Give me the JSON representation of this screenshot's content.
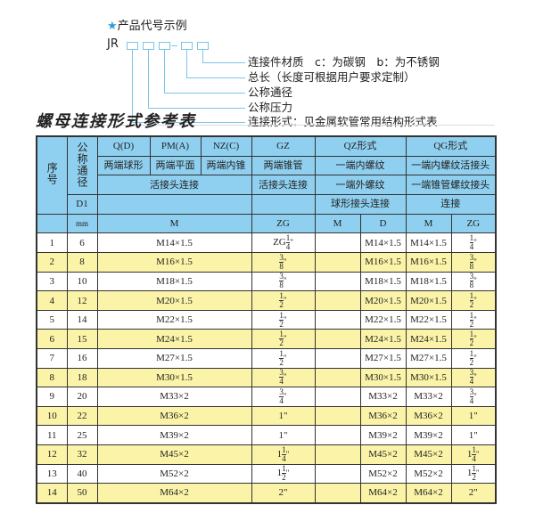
{
  "legend": {
    "title": "产品代号示例",
    "prefix": "JR",
    "items": [
      "连接件材质　c：为碳钢　b：为不锈钢",
      "总长（长度可根据用户要求定制）",
      "公称通径",
      "公称压力",
      "连接形式：见金属软管常用结构形式表"
    ]
  },
  "title": "螺母连接形式参考表",
  "header": {
    "seq": "序号",
    "dn": "公称通径",
    "d1": "D1",
    "mm": "mm",
    "q": "Q(D)",
    "pm": "PM(A)",
    "nz": "NZ(C)",
    "gz": "GZ",
    "qz": "QZ形式",
    "qg": "QG形式",
    "q2": "两端球形",
    "pm2": "两端平面",
    "nz2": "两端内锥",
    "gz2": "两端锥管",
    "qz2": "一端内螺纹",
    "qg2": "一端内螺纹活接头",
    "hj": "活接头连接",
    "gz3": "活接头连接",
    "qz3": "一端外螺纹",
    "qg3": "一端锥管螺纹接头",
    "qz4": "球形接头连接",
    "qg4": "连接",
    "m": "M",
    "zg": "ZG",
    "qzm": "M",
    "qzd": "D",
    "qgm": "M",
    "qgzg": "ZG"
  },
  "rows": [
    {
      "n": "1",
      "dn": "6",
      "m": "M14×1.5",
      "zg": [
        "ZG",
        "1",
        "4"
      ],
      "qzm": "",
      "qzd": "M14×1.5",
      "qgm": "M14×1.5",
      "qgzg": [
        "",
        "1",
        "4"
      ]
    },
    {
      "n": "2",
      "dn": "8",
      "m": "M16×1.5",
      "zg": [
        "",
        "3",
        "8"
      ],
      "qzm": "",
      "qzd": "M16×1.5",
      "qgm": "M16×1.5",
      "qgzg": [
        "",
        "3",
        "8"
      ]
    },
    {
      "n": "3",
      "dn": "10",
      "m": "M18×1.5",
      "zg": [
        "",
        "3",
        "8"
      ],
      "qzm": "",
      "qzd": "M18×1.5",
      "qgm": "M18×1.5",
      "qgzg": [
        "",
        "3",
        "8"
      ]
    },
    {
      "n": "4",
      "dn": "12",
      "m": "M20×1.5",
      "zg": [
        "",
        "1",
        "2"
      ],
      "qzm": "",
      "qzd": "M20×1.5",
      "qgm": "M20×1.5",
      "qgzg": [
        "",
        "1",
        "2"
      ]
    },
    {
      "n": "5",
      "dn": "14",
      "m": "M22×1.5",
      "zg": [
        "",
        "1",
        "2"
      ],
      "qzm": "",
      "qzd": "M22×1.5",
      "qgm": "M22×1.5",
      "qgzg": [
        "",
        "1",
        "2"
      ]
    },
    {
      "n": "6",
      "dn": "15",
      "m": "M24×1.5",
      "zg": [
        "",
        "1",
        "2"
      ],
      "qzm": "",
      "qzd": "M24×1.5",
      "qgm": "M24×1.5",
      "qgzg": [
        "",
        "1",
        "2"
      ]
    },
    {
      "n": "7",
      "dn": "16",
      "m": "M27×1.5",
      "zg": [
        "",
        "1",
        "2"
      ],
      "qzm": "",
      "qzd": "M27×1.5",
      "qgm": "M27×1.5",
      "qgzg": [
        "",
        "1",
        "2"
      ]
    },
    {
      "n": "8",
      "dn": "18",
      "m": "M30×1.5",
      "zg": [
        "",
        "3",
        "4"
      ],
      "qzm": "",
      "qzd": "M30×1.5",
      "qgm": "M30×1.5",
      "qgzg": [
        "",
        "3",
        "4"
      ]
    },
    {
      "n": "9",
      "dn": "20",
      "m": "M33×2",
      "zg": [
        "",
        "3",
        "4"
      ],
      "qzm": "",
      "qzd": "M33×2",
      "qgm": "M33×2",
      "qgzg": [
        "",
        "3",
        "4"
      ]
    },
    {
      "n": "10",
      "dn": "22",
      "m": "M36×2",
      "zg": [
        "1\"",
        "",
        ""
      ],
      "qzm": "",
      "qzd": "M36×2",
      "qgm": "M36×2",
      "qgzg": [
        "1\"",
        "",
        ""
      ]
    },
    {
      "n": "11",
      "dn": "25",
      "m": "M39×2",
      "zg": [
        "1\"",
        "",
        ""
      ],
      "qzm": "",
      "qzd": "M39×2",
      "qgm": "M39×2",
      "qgzg": [
        "1\"",
        "",
        ""
      ]
    },
    {
      "n": "12",
      "dn": "32",
      "m": "M45×2",
      "zg": [
        "1",
        "1",
        "4"
      ],
      "qzm": "",
      "qzd": "M45×2",
      "qgm": "M45×2",
      "qgzg": [
        "1",
        "1",
        "4"
      ]
    },
    {
      "n": "13",
      "dn": "40",
      "m": "M52×2",
      "zg": [
        "1",
        "1",
        "2"
      ],
      "qzm": "",
      "qzd": "M52×2",
      "qgm": "M52×2",
      "qgzg": [
        "1",
        "1",
        "2"
      ]
    },
    {
      "n": "14",
      "dn": "50",
      "m": "M64×2",
      "zg": [
        "2\"",
        "",
        ""
      ],
      "qzm": "",
      "qzd": "M64×2",
      "qgm": "M64×2",
      "qgzg": [
        "2\"",
        "",
        ""
      ]
    }
  ],
  "colors": {
    "header": "#8fd0f0",
    "stripe": "#fbf4a8",
    "accent": "#2a9fd6"
  }
}
